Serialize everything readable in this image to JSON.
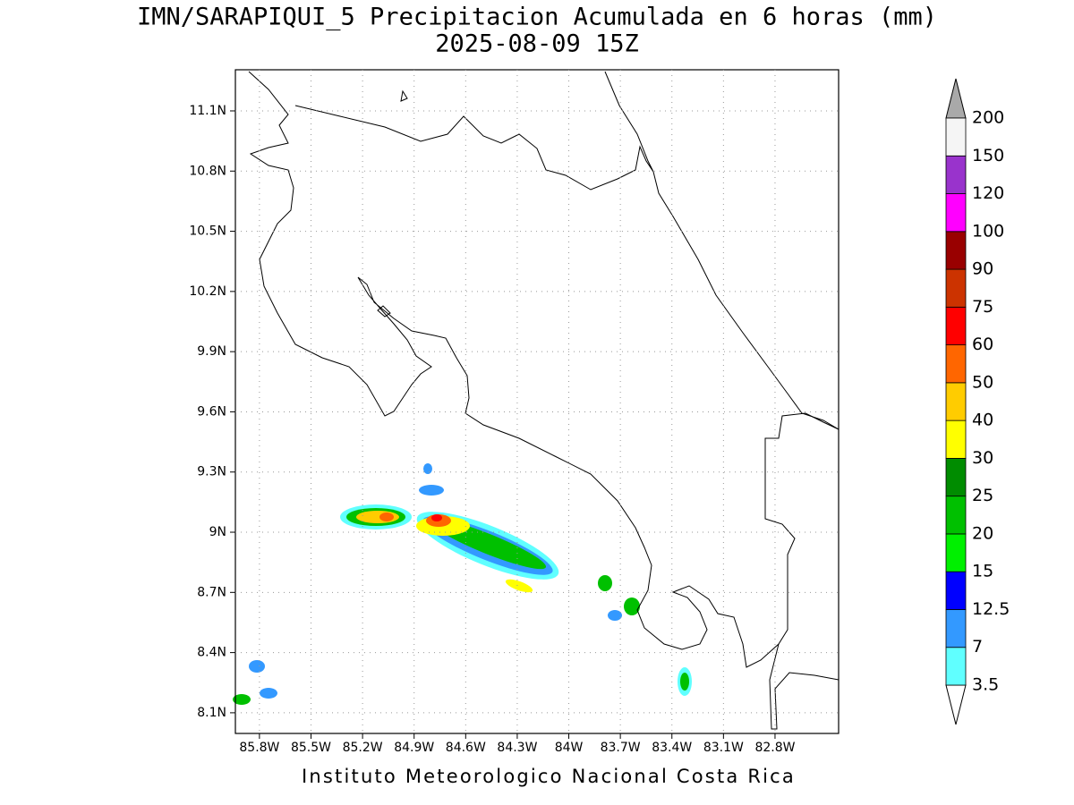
{
  "title": "IMN/SARAPIQUI_5 Precipitacion Acumulada en 6 horas (mm)",
  "subtitle": "2025-08-09 15Z",
  "footer": "Instituto Meteorologico Nacional Costa Rica",
  "map": {
    "xlim": [
      -85.94,
      -82.43
    ],
    "ylim": [
      7.997,
      11.305
    ],
    "grid": true,
    "xticks": [
      {
        "value": -85.8,
        "label": "85.8W"
      },
      {
        "value": -85.5,
        "label": "85.5W"
      },
      {
        "value": -85.2,
        "label": "85.2W"
      },
      {
        "value": -84.9,
        "label": "84.9W"
      },
      {
        "value": -84.6,
        "label": "84.6W"
      },
      {
        "value": -84.3,
        "label": "84.3W"
      },
      {
        "value": -84.0,
        "label": "84W"
      },
      {
        "value": -83.7,
        "label": "83.7W"
      },
      {
        "value": -83.4,
        "label": "83.4W"
      },
      {
        "value": -83.1,
        "label": "83.1W"
      },
      {
        "value": -82.8,
        "label": "82.8W"
      }
    ],
    "yticks": [
      {
        "value": 8.1,
        "label": "8.1N"
      },
      {
        "value": 8.4,
        "label": "8.4N"
      },
      {
        "value": 8.7,
        "label": "8.7N"
      },
      {
        "value": 9.0,
        "label": "9N"
      },
      {
        "value": 9.3,
        "label": "9.3N"
      },
      {
        "value": 9.6,
        "label": "9.6N"
      },
      {
        "value": 9.9,
        "label": "9.9N"
      },
      {
        "value": 10.2,
        "label": "10.2N"
      },
      {
        "value": 10.5,
        "label": "10.5N"
      },
      {
        "value": 10.8,
        "label": "10.8N"
      },
      {
        "value": 11.1,
        "label": "11.1N"
      }
    ]
  },
  "colorbar": {
    "levels": [
      3.5,
      7,
      12.5,
      15,
      20,
      25,
      30,
      40,
      50,
      60,
      75,
      90,
      100,
      120,
      150,
      200
    ],
    "colors": [
      "#60ffff",
      "#3399ff",
      "#0000ff",
      "#00f000",
      "#00c000",
      "#008c00",
      "#ffff00",
      "#ffcc00",
      "#ff6600",
      "#ff0000",
      "#cc3300",
      "#990000",
      "#ff00ff",
      "#9933cc",
      "#f5f5f5"
    ],
    "under_color": "#ffffff",
    "over_color": "#a9a9a9"
  }
}
